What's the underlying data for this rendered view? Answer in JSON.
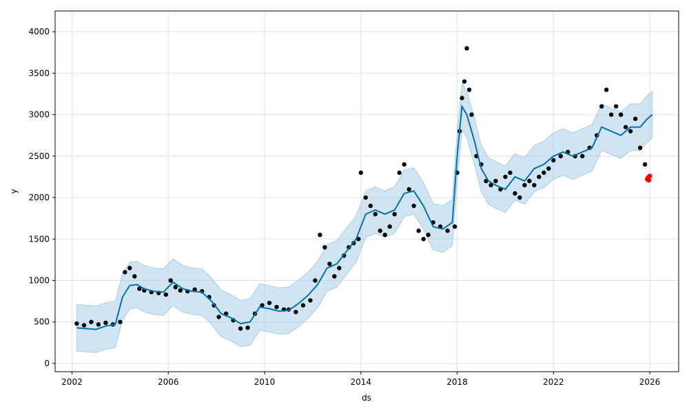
{
  "chart_data": {
    "type": "scatter",
    "title": "",
    "xlabel": "ds",
    "ylabel": "y",
    "xlim": [
      2001.3,
      2027.2
    ],
    "ylim": [
      -100,
      4250
    ],
    "grid": true,
    "x_ticks": [
      2002,
      2006,
      2010,
      2014,
      2018,
      2022,
      2026
    ],
    "x_tick_labels": [
      "2002",
      "2006",
      "2010",
      "2014",
      "2018",
      "2022",
      "2026"
    ],
    "y_ticks": [
      0,
      500,
      1000,
      1500,
      2000,
      2500,
      3000,
      3500,
      4000
    ],
    "y_tick_labels": [
      "0",
      "500",
      "1000",
      "1500",
      "2000",
      "2500",
      "3000",
      "3500",
      "4000"
    ],
    "colors": {
      "observed": "#000000",
      "forecast": "#0072B2",
      "interval": "#A9CDE6",
      "recent": "#FF0000"
    },
    "series": [
      {
        "kind": "observed",
        "x": [
          2002.2,
          2002.5,
          2002.8,
          2003.1,
          2003.4,
          2003.7,
          2004.0,
          2004.2,
          2004.4,
          2004.6,
          2004.8,
          2005.0,
          2005.3,
          2005.6,
          2005.9,
          2006.1,
          2006.3,
          2006.5,
          2006.8,
          2007.1,
          2007.4,
          2007.7,
          2007.9,
          2008.1,
          2008.4,
          2008.7,
          2009.0,
          2009.3,
          2009.6,
          2009.9,
          2010.2,
          2010.5,
          2010.8,
          2011.0,
          2011.3,
          2011.6,
          2011.9,
          2012.1,
          2012.3,
          2012.5,
          2012.7,
          2012.9,
          2013.1,
          2013.3,
          2013.5,
          2013.7,
          2013.9,
          2014.0,
          2014.2,
          2014.4,
          2014.6,
          2014.8,
          2015.0,
          2015.2,
          2015.4,
          2015.6,
          2015.8,
          2016.0,
          2016.2,
          2016.4,
          2016.6,
          2016.8,
          2017.0,
          2017.3,
          2017.6,
          2017.9,
          2018.0,
          2018.1,
          2018.2,
          2018.3,
          2018.4,
          2018.5,
          2018.6,
          2018.8,
          2019.0,
          2019.2,
          2019.4,
          2019.6,
          2019.8,
          2020.0,
          2020.2,
          2020.4,
          2020.6,
          2020.8,
          2021.0,
          2021.2,
          2021.4,
          2021.6,
          2021.8,
          2022.0,
          2022.3,
          2022.6,
          2022.9,
          2023.2,
          2023.5,
          2023.8,
          2024.0,
          2024.2,
          2024.4,
          2024.6,
          2024.8,
          2025.0,
          2025.2,
          2025.4,
          2025.6,
          2025.8
        ],
        "y": [
          480,
          460,
          500,
          470,
          490,
          470,
          500,
          1100,
          1150,
          1050,
          900,
          880,
          860,
          850,
          830,
          1000,
          920,
          880,
          870,
          890,
          870,
          800,
          700,
          560,
          600,
          520,
          420,
          430,
          600,
          700,
          730,
          680,
          650,
          650,
          620,
          700,
          760,
          1000,
          1550,
          1400,
          1200,
          1050,
          1150,
          1300,
          1400,
          1450,
          1500,
          2300,
          2000,
          1900,
          1800,
          1600,
          1550,
          1650,
          1800,
          2300,
          2400,
          2100,
          1900,
          1600,
          1500,
          1550,
          1700,
          1650,
          1600,
          1650,
          2300,
          2800,
          3200,
          3400,
          3800,
          3300,
          3000,
          2500,
          2400,
          2200,
          2150,
          2200,
          2100,
          2250,
          2300,
          2050,
          2000,
          2150,
          2200,
          2150,
          2250,
          2300,
          2350,
          2450,
          2500,
          2550,
          2500,
          2500,
          2600,
          2750,
          3100,
          3300,
          3000,
          3100,
          3000,
          2850,
          2800,
          2950,
          2600,
          2400
        ]
      },
      {
        "kind": "recent",
        "x": [
          2025.9,
          2025.93,
          2025.96,
          2026.0
        ],
        "y": [
          2220,
          2240,
          2210,
          2260
        ]
      },
      {
        "kind": "forecast",
        "x": [
          2002.2,
          2002.6,
          2003.0,
          2003.4,
          2003.8,
          2004.1,
          2004.4,
          2004.7,
          2005.0,
          2005.4,
          2005.8,
          2006.2,
          2006.6,
          2007.0,
          2007.4,
          2007.8,
          2008.2,
          2008.6,
          2009.0,
          2009.4,
          2009.8,
          2010.2,
          2010.6,
          2011.0,
          2011.4,
          2011.8,
          2012.2,
          2012.6,
          2013.0,
          2013.4,
          2013.8,
          2014.2,
          2014.6,
          2015.0,
          2015.4,
          2015.8,
          2016.2,
          2016.6,
          2017.0,
          2017.4,
          2017.8,
          2018.0,
          2018.2,
          2018.4,
          2018.7,
          2019.0,
          2019.3,
          2019.6,
          2020.0,
          2020.4,
          2020.8,
          2021.2,
          2021.6,
          2022.0,
          2022.4,
          2022.8,
          2023.2,
          2023.6,
          2024.0,
          2024.4,
          2024.8,
          2025.2,
          2025.6,
          2025.9,
          2026.1
        ],
        "y": [
          430,
          420,
          410,
          450,
          470,
          800,
          940,
          950,
          900,
          870,
          860,
          980,
          900,
          870,
          860,
          750,
          600,
          550,
          480,
          500,
          680,
          660,
          630,
          640,
          720,
          820,
          950,
          1150,
          1200,
          1350,
          1500,
          1800,
          1850,
          1800,
          1850,
          2050,
          2080,
          1900,
          1650,
          1620,
          1700,
          2500,
          3100,
          3000,
          2700,
          2350,
          2200,
          2150,
          2100,
          2250,
          2200,
          2350,
          2400,
          2500,
          2550,
          2500,
          2550,
          2600,
          2850,
          2800,
          2750,
          2850,
          2850,
          2950,
          3000
        ]
      }
    ]
  }
}
